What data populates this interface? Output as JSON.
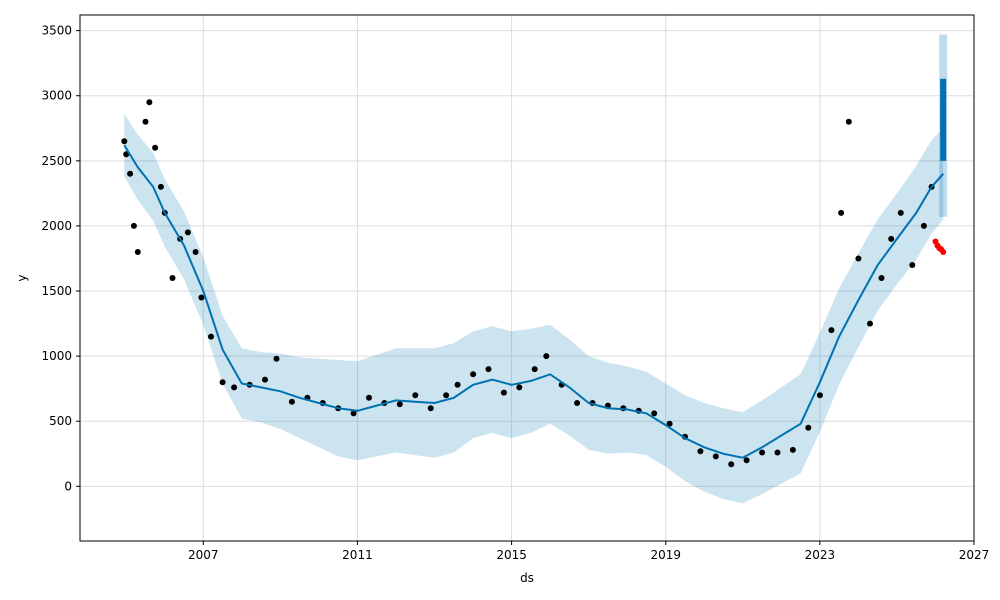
{
  "chart_data": {
    "type": "scatter",
    "title": "",
    "xlabel": "ds",
    "ylabel": "y",
    "xlim": [
      2003.8,
      2027.0
    ],
    "ylim": [
      -420,
      3620
    ],
    "x_ticks": [
      2007,
      2011,
      2015,
      2019,
      2023,
      2027
    ],
    "y_ticks": [
      0,
      500,
      1000,
      1500,
      2000,
      2500,
      3000,
      3500
    ],
    "grid": true,
    "legend": "none",
    "colors": {
      "observed": "#000000",
      "forecast_line": "#0072B2",
      "uncertainty_band": "#0072B2",
      "recent_points": "#ff0000"
    },
    "series": [
      {
        "role": "observed",
        "x": [
          2004.95,
          2005.0,
          2005.1,
          2005.2,
          2005.3,
          2005.5,
          2005.6,
          2005.75,
          2005.9,
          2006.0,
          2006.2,
          2006.4,
          2006.6,
          2006.8,
          2006.95,
          2007.2,
          2007.5,
          2007.8,
          2008.2,
          2008.6,
          2008.9,
          2009.3,
          2009.7,
          2010.1,
          2010.5,
          2010.9,
          2011.3,
          2011.7,
          2012.1,
          2012.5,
          2012.9,
          2013.3,
          2013.6,
          2014.0,
          2014.4,
          2014.8,
          2015.2,
          2015.6,
          2015.9,
          2016.3,
          2016.7,
          2017.1,
          2017.5,
          2017.9,
          2018.3,
          2018.7,
          2019.1,
          2019.5,
          2019.9,
          2020.3,
          2020.7,
          2021.1,
          2021.5,
          2021.9,
          2022.3,
          2022.7,
          2023.0,
          2023.3,
          2023.55,
          2023.75,
          2024.0,
          2024.3,
          2024.6,
          2024.85,
          2025.1,
          2025.4,
          2025.7,
          2025.9
        ],
        "y": [
          2650,
          2550,
          2400,
          2000,
          1800,
          2800,
          2950,
          2600,
          2300,
          2100,
          1600,
          1900,
          1950,
          1800,
          1450,
          1150,
          800,
          760,
          780,
          820,
          980,
          650,
          680,
          640,
          600,
          560,
          680,
          640,
          630,
          700,
          600,
          700,
          780,
          860,
          900,
          720,
          760,
          900,
          1000,
          780,
          640,
          640,
          620,
          600,
          580,
          560,
          480,
          380,
          270,
          230,
          170,
          200,
          260,
          260,
          280,
          450,
          700,
          1200,
          2100,
          2800,
          1750,
          1250,
          1600,
          1900,
          2100,
          1700,
          2000,
          2300
        ]
      },
      {
        "role": "recent",
        "x": [
          2026.0,
          2026.05,
          2026.1,
          2026.15,
          2026.2
        ],
        "y": [
          1880,
          1850,
          1830,
          1820,
          1800
        ]
      },
      {
        "role": "trend",
        "x": [
          2004.95,
          2005.3,
          2005.7,
          2006.0,
          2006.5,
          2007.0,
          2007.5,
          2008.0,
          2008.5,
          2009.0,
          2009.5,
          2010.0,
          2010.5,
          2011.0,
          2011.5,
          2012.0,
          2012.5,
          2013.0,
          2013.5,
          2014.0,
          2014.5,
          2015.0,
          2015.5,
          2016.0,
          2016.5,
          2017.0,
          2017.5,
          2018.0,
          2018.5,
          2019.0,
          2019.5,
          2020.0,
          2020.5,
          2021.0,
          2021.5,
          2022.0,
          2022.5,
          2023.0,
          2023.5,
          2024.0,
          2024.5,
          2025.0,
          2025.5,
          2025.9,
          2026.2
        ],
        "y": [
          2620,
          2450,
          2300,
          2100,
          1850,
          1500,
          1050,
          790,
          760,
          730,
          680,
          640,
          600,
          580,
          620,
          660,
          650,
          640,
          680,
          780,
          820,
          780,
          810,
          860,
          760,
          640,
          600,
          590,
          560,
          470,
          370,
          300,
          250,
          220,
          300,
          390,
          480,
          800,
          1150,
          1430,
          1700,
          1900,
          2100,
          2300,
          2400
        ]
      },
      {
        "role": "upper",
        "y": [
          2860,
          2700,
          2560,
          2360,
          2110,
          1760,
          1310,
          1060,
          1030,
          1020,
          990,
          980,
          970,
          960,
          1010,
          1060,
          1060,
          1060,
          1100,
          1190,
          1230,
          1190,
          1210,
          1240,
          1130,
          1000,
          950,
          920,
          880,
          790,
          700,
          640,
          600,
          570,
          660,
          760,
          860,
          1180,
          1520,
          1790,
          2050,
          2250,
          2460,
          2660,
          2750
        ]
      },
      {
        "role": "lower",
        "y": [
          2380,
          2200,
          2040,
          1840,
          1590,
          1240,
          790,
          520,
          490,
          440,
          370,
          300,
          230,
          200,
          230,
          260,
          240,
          220,
          260,
          370,
          410,
          370,
          410,
          480,
          390,
          280,
          250,
          260,
          240,
          150,
          40,
          -40,
          -100,
          -130,
          -60,
          20,
          100,
          420,
          780,
          1070,
          1350,
          1550,
          1740,
          1940,
          2050
        ]
      },
      {
        "role": "forecast",
        "x": [
          2026.2
        ],
        "y_range": [
          2500,
          3130
        ],
        "band": [
          2070,
          3470
        ]
      }
    ]
  }
}
